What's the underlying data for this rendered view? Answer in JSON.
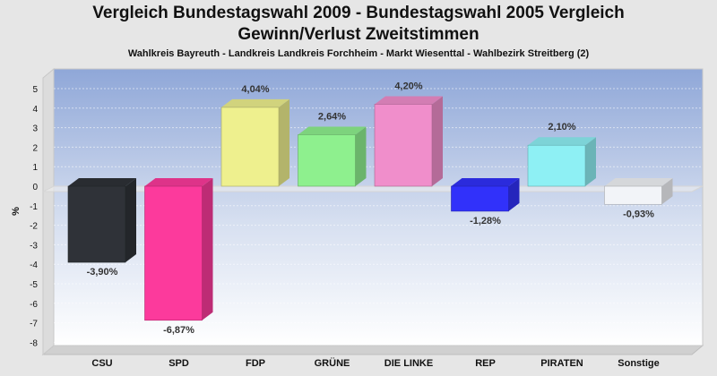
{
  "chart_data": {
    "type": "bar",
    "title_line1": "Vergleich Bundestagswahl 2009 - Bundestagswahl 2005 Vergleich",
    "title_line2": "Gewinn/Verlust Zweitstimmen",
    "subtitle": "Wahlkreis Bayreuth - Landkreis Landkreis Forchheim - Markt Wiesenttal - Wahlbezirk Streitberg (2)",
    "ylabel": "%",
    "ylim": [
      -8,
      5.5
    ],
    "yticks": [
      5,
      4,
      3,
      2,
      1,
      0,
      -1,
      -2,
      -3,
      -4,
      -5,
      -6,
      -7,
      -8
    ],
    "categories": [
      "CSU",
      "SPD",
      "FDP",
      "GRÜNE",
      "DIE LINKE",
      "REP",
      "PIRATEN",
      "Sonstige"
    ],
    "values": [
      -3.9,
      -6.87,
      4.04,
      2.64,
      4.2,
      -1.28,
      2.1,
      -0.93
    ],
    "value_labels": [
      "-3,90%",
      "-6,87%",
      "4,04%",
      "2,64%",
      "4,20%",
      "-1,28%",
      "2,10%",
      "-0,93%"
    ],
    "colors": [
      "#2f3238",
      "#fc3a9c",
      "#eef08e",
      "#8ef08e",
      "#f08ecb",
      "#3131fa",
      "#8ef0f4",
      "#f2f4f8"
    ],
    "grid": true
  }
}
